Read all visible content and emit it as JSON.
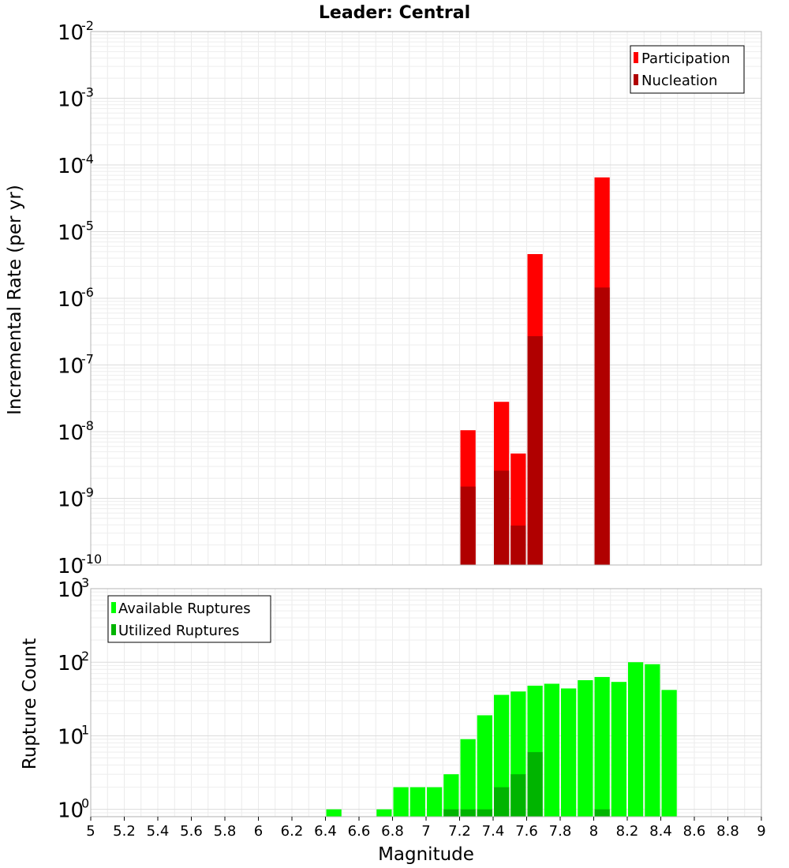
{
  "title": "Leader: Central",
  "chart_data": [
    {
      "type": "bar",
      "name": "Incremental Rate",
      "ylabel": "Incremental Rate (per yr)",
      "yscale": "log",
      "ylim_exp": [
        -10,
        -2
      ],
      "yticks": [
        {
          "base": "10",
          "exp": "-2"
        },
        {
          "base": "10",
          "exp": "-3"
        },
        {
          "base": "10",
          "exp": "-4"
        },
        {
          "base": "10",
          "exp": "-5"
        },
        {
          "base": "10",
          "exp": "-6"
        },
        {
          "base": "10",
          "exp": "-7"
        },
        {
          "base": "10",
          "exp": "-8"
        },
        {
          "base": "10",
          "exp": "-9"
        },
        {
          "base": "10",
          "exp": "-10"
        }
      ],
      "xlim": [
        5,
        9
      ],
      "bin_width": 0.1,
      "legend_position": "top-right",
      "series": [
        {
          "name": "Participation",
          "color": "#ff0000",
          "points": [
            {
              "x": 7.25,
              "y": 1.05e-08
            },
            {
              "x": 7.45,
              "y": 2.8e-08
            },
            {
              "x": 7.55,
              "y": 4.7e-09
            },
            {
              "x": 7.65,
              "y": 4.6e-06
            },
            {
              "x": 8.05,
              "y": 6.5e-05
            }
          ]
        },
        {
          "name": "Nucleation",
          "color": "#b00000",
          "points": [
            {
              "x": 7.25,
              "y": 1.5e-09
            },
            {
              "x": 7.45,
              "y": 2.6e-09
            },
            {
              "x": 7.55,
              "y": 3.9e-10
            },
            {
              "x": 7.65,
              "y": 2.7e-07
            },
            {
              "x": 8.05,
              "y": 1.45e-06
            }
          ]
        }
      ]
    },
    {
      "type": "bar",
      "name": "Rupture Count",
      "ylabel": "Rupture Count",
      "xlabel": "Magnitude",
      "yscale": "log",
      "ylim_exp": [
        -0.1,
        3
      ],
      "yticks": [
        {
          "base": "10",
          "exp": "3"
        },
        {
          "base": "10",
          "exp": "2"
        },
        {
          "base": "10",
          "exp": "1"
        },
        {
          "base": "10",
          "exp": "0"
        }
      ],
      "xlim": [
        5,
        9
      ],
      "xticks": [
        "5",
        "5.2",
        "5.4",
        "5.6",
        "5.8",
        "6",
        "6.2",
        "6.4",
        "6.6",
        "6.8",
        "7",
        "7.2",
        "7.4",
        "7.6",
        "7.8",
        "8",
        "8.2",
        "8.4",
        "8.6",
        "8.8",
        "9"
      ],
      "bin_width": 0.1,
      "legend_position": "top-left",
      "series": [
        {
          "name": "Available Ruptures",
          "color": "#00ff00",
          "points": [
            {
              "x": 6.45,
              "y": 1
            },
            {
              "x": 6.75,
              "y": 1
            },
            {
              "x": 6.85,
              "y": 2
            },
            {
              "x": 6.95,
              "y": 2
            },
            {
              "x": 7.05,
              "y": 2
            },
            {
              "x": 7.15,
              "y": 3
            },
            {
              "x": 7.25,
              "y": 9
            },
            {
              "x": 7.35,
              "y": 19
            },
            {
              "x": 7.45,
              "y": 36
            },
            {
              "x": 7.55,
              "y": 40
            },
            {
              "x": 7.65,
              "y": 48
            },
            {
              "x": 7.75,
              "y": 51
            },
            {
              "x": 7.85,
              "y": 44
            },
            {
              "x": 7.95,
              "y": 57
            },
            {
              "x": 8.05,
              "y": 63
            },
            {
              "x": 8.15,
              "y": 54
            },
            {
              "x": 8.25,
              "y": 100
            },
            {
              "x": 8.35,
              "y": 94
            },
            {
              "x": 8.45,
              "y": 42
            }
          ]
        },
        {
          "name": "Utilized Ruptures",
          "color": "#00b400",
          "points": [
            {
              "x": 7.15,
              "y": 1
            },
            {
              "x": 7.25,
              "y": 1
            },
            {
              "x": 7.35,
              "y": 1
            },
            {
              "x": 7.45,
              "y": 2
            },
            {
              "x": 7.55,
              "y": 3
            },
            {
              "x": 7.65,
              "y": 6
            },
            {
              "x": 8.05,
              "y": 1
            }
          ]
        }
      ]
    }
  ]
}
